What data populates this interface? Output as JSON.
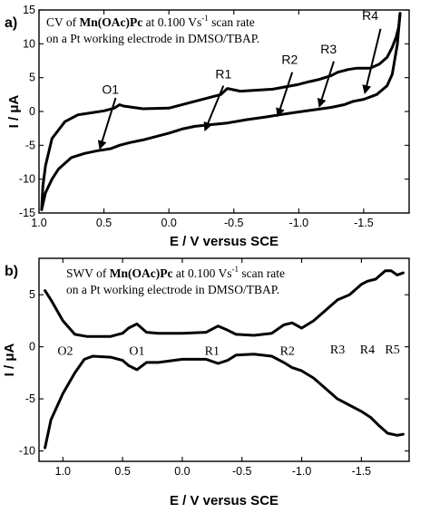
{
  "chart_data": [
    {
      "type": "line",
      "panel_label": "a)",
      "legend_line1": "CV of Mn(OAc)Pc at 0.100 Vs-1 scan rate",
      "legend_line2": "on a Pt working electrode in DMSO/TBAP.",
      "legend_parts": {
        "pre": "CV of ",
        "bold": "Mn(OAc)Pc",
        "mid": " at 0.100 Vs",
        "sup": "-1",
        "post": " scan rate"
      },
      "xlabel": "E / V versus SCE",
      "ylabel": "I / μA",
      "xlim": [
        1.0,
        -1.85
      ],
      "ylim": [
        -15,
        15
      ],
      "x_ticks": [
        1.0,
        0.5,
        0.0,
        -0.5,
        -1.0,
        -1.5
      ],
      "x_tick_labels": [
        "1.0",
        "0.5",
        "0.0",
        "-0.5",
        "-1.0",
        "-1.5"
      ],
      "y_ticks": [
        -15,
        -10,
        -5,
        0,
        5,
        10,
        15
      ],
      "y_tick_labels": [
        "-15",
        "-10",
        "-5",
        "0",
        "5",
        "10",
        "15"
      ],
      "series": [
        {
          "x": [
            0.98,
            0.97,
            0.95,
            0.9,
            0.8,
            0.7,
            0.6,
            0.5,
            0.42,
            0.38,
            0.35,
            0.2,
            0.0,
            -0.2,
            -0.4,
            -0.45,
            -0.55,
            -0.8,
            -1.0,
            -1.08,
            -1.15,
            -1.25,
            -1.3,
            -1.38,
            -1.45,
            -1.55,
            -1.62,
            -1.68,
            -1.72,
            -1.75,
            -1.77,
            -1.78
          ],
          "y": [
            -14.5,
            -11,
            -8,
            -4,
            -1.5,
            -0.5,
            -0.2,
            0.1,
            0.5,
            1.0,
            0.8,
            0.4,
            0.5,
            1.5,
            2.5,
            3.4,
            3.0,
            3.3,
            4.0,
            4.4,
            4.7,
            5.3,
            5.8,
            6.2,
            6.4,
            6.4,
            7.0,
            8.0,
            9.5,
            11.0,
            12.5,
            14.5
          ]
        },
        {
          "x": [
            -1.78,
            -1.76,
            -1.72,
            -1.68,
            -1.6,
            -1.5,
            -1.42,
            -1.35,
            -1.25,
            -1.1,
            -0.95,
            -0.85,
            -0.75,
            -0.6,
            -0.45,
            -0.3,
            -0.2,
            -0.1,
            0.0,
            0.2,
            0.3,
            0.38,
            0.45,
            0.55,
            0.65,
            0.75,
            0.85,
            0.9,
            0.95,
            0.98
          ],
          "y": [
            14.5,
            10,
            5.5,
            3.8,
            2.5,
            1.8,
            1.5,
            1.0,
            0.6,
            0.2,
            -0.2,
            -0.5,
            -0.8,
            -1.2,
            -1.7,
            -2.0,
            -2.2,
            -2.6,
            -3.2,
            -4.2,
            -4.6,
            -5.0,
            -5.5,
            -5.8,
            -6.2,
            -6.8,
            -8.5,
            -10,
            -12,
            -14.5
          ]
        }
      ],
      "annotations": [
        {
          "text": "O1",
          "x": 0.45,
          "y": 2.6,
          "ax": [
            0.41,
            2.0
          ],
          "ah": [
            0.53,
            -5.4
          ]
        },
        {
          "text": "R1",
          "x": -0.42,
          "y": 4.9,
          "ax": [
            -0.42,
            3.8
          ],
          "ah": [
            -0.28,
            -2.7
          ]
        },
        {
          "text": "R2",
          "x": -0.93,
          "y": 7.0,
          "ax": [
            -0.95,
            5.8
          ],
          "ah": [
            -0.84,
            -0.6
          ]
        },
        {
          "text": "R3",
          "x": -1.23,
          "y": 8.6,
          "ax": [
            -1.27,
            7.4
          ],
          "ah": [
            -1.16,
            0.8
          ]
        },
        {
          "text": "R4",
          "x": -1.55,
          "y": 13.5,
          "ax": [
            -1.63,
            12.2
          ],
          "ah": [
            -1.51,
            2.8
          ]
        }
      ]
    },
    {
      "type": "line",
      "panel_label": "b)",
      "legend_line1": "SWV of Mn(OAc)Pc at 0.100 Vs-1 scan rate",
      "legend_line2": "on a Pt working electrode in DMSO/TBAP.",
      "legend_parts": {
        "pre": "SWV of ",
        "bold": "Mn(OAc)Pc",
        "mid": "  at 0.100 Vs",
        "sup": "-1",
        "post": " scan rate"
      },
      "xlabel": "E / V versus SCE",
      "ylabel": "I / μA",
      "xlim": [
        1.2,
        -1.9
      ],
      "ylim": [
        -11,
        8.5
      ],
      "x_ticks": [
        1.0,
        0.5,
        0.0,
        -0.5,
        -1.0,
        -1.5
      ],
      "x_tick_labels": [
        "1.0",
        "0.5",
        "0.0",
        "-0.5",
        "-1.0",
        "-1.5"
      ],
      "y_ticks": [
        -10,
        -5,
        0,
        5
      ],
      "y_tick_labels": [
        "-10",
        "-5",
        "0",
        "5"
      ],
      "series": [
        {
          "x": [
            1.15,
            1.1,
            1.0,
            0.9,
            0.8,
            0.6,
            0.5,
            0.45,
            0.38,
            0.3,
            0.2,
            0.0,
            -0.2,
            -0.3,
            -0.38,
            -0.45,
            -0.6,
            -0.75,
            -0.85,
            -0.92,
            -1.0,
            -1.1,
            -1.2,
            -1.3,
            -1.4,
            -1.5,
            -1.55,
            -1.62,
            -1.7,
            -1.75,
            -1.8,
            -1.85
          ],
          "y": [
            5.4,
            4.5,
            2.5,
            1.2,
            1.0,
            1.0,
            1.3,
            1.8,
            2.2,
            1.4,
            1.3,
            1.3,
            1.4,
            2.0,
            1.6,
            1.2,
            1.1,
            1.3,
            2.1,
            2.3,
            1.8,
            2.5,
            3.5,
            4.5,
            5.0,
            6.0,
            6.3,
            6.5,
            7.3,
            7.3,
            6.9,
            7.1
          ]
        },
        {
          "x": [
            1.15,
            1.1,
            1.0,
            0.9,
            0.82,
            0.75,
            0.6,
            0.5,
            0.45,
            0.38,
            0.3,
            0.2,
            0.0,
            -0.2,
            -0.3,
            -0.38,
            -0.45,
            -0.6,
            -0.75,
            -0.85,
            -0.92,
            -1.0,
            -1.1,
            -1.2,
            -1.3,
            -1.4,
            -1.5,
            -1.58,
            -1.65,
            -1.72,
            -1.8,
            -1.85
          ],
          "y": [
            -9.7,
            -7.0,
            -4.5,
            -2.5,
            -1.2,
            -0.9,
            -1.0,
            -1.3,
            -1.8,
            -2.2,
            -1.5,
            -1.5,
            -1.2,
            -1.2,
            -1.6,
            -1.3,
            -0.8,
            -0.7,
            -0.9,
            -1.5,
            -2.0,
            -2.3,
            -3.0,
            -4.0,
            -5.0,
            -5.6,
            -6.2,
            -6.8,
            -7.6,
            -8.3,
            -8.5,
            -8.4
          ]
        }
      ],
      "peak_labels": [
        {
          "text": "O2",
          "x": 0.98,
          "y": -0.35
        },
        {
          "text": "O1",
          "x": 0.38,
          "y": -0.35
        },
        {
          "text": "R1",
          "x": -0.25,
          "y": -0.35
        },
        {
          "text": "R2",
          "x": -0.88,
          "y": -0.35
        },
        {
          "text": "R3",
          "x": -1.3,
          "y": -0.2
        },
        {
          "text": "R4",
          "x": -1.55,
          "y": -0.2
        },
        {
          "text": "R5",
          "x": -1.76,
          "y": -0.2
        }
      ]
    }
  ]
}
